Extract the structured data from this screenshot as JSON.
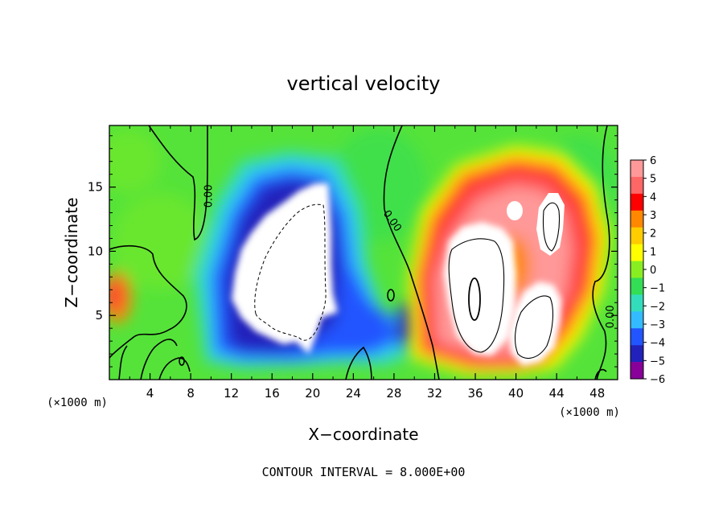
{
  "chart_data": {
    "type": "heatmap",
    "title": "vertical velocity",
    "xlabel": "X−coordinate",
    "ylabel": "Z−coordinate",
    "x_unit_label": "(×1000 m)",
    "y_unit_label": "(×1000 m)",
    "footer": "CONTOUR INTERVAL = 8.000E+00",
    "xlim": [
      0,
      50
    ],
    "ylim": [
      0,
      19.8
    ],
    "x_ticks": [
      4,
      8,
      12,
      16,
      20,
      24,
      28,
      32,
      36,
      40,
      44,
      48
    ],
    "x_tick_labels": [
      "4",
      "8",
      "12",
      "16",
      "20",
      "24",
      "28",
      "32",
      "36",
      "40",
      "44",
      "48"
    ],
    "y_ticks": [
      5,
      10,
      15
    ],
    "y_tick_labels": [
      "5",
      "10",
      "15"
    ],
    "colorbar": {
      "values": [
        6,
        5,
        4,
        3,
        2,
        1,
        0,
        -1,
        -2,
        -3,
        -4,
        -5,
        -6
      ],
      "labels": [
        "6",
        "5",
        "4",
        "3",
        "2",
        "1",
        "0",
        "−1",
        "−2",
        "−3",
        "−4",
        "−5",
        "−6"
      ],
      "colors": [
        "#ff9999",
        "#ff6666",
        "#ff0000",
        "#ff8800",
        "#ffcc00",
        "#ffff00",
        "#88ee22",
        "#33dd55",
        "#33ddbb",
        "#33bbff",
        "#2255ff",
        "#2222bb",
        "#880099"
      ]
    },
    "contour_labels": [
      {
        "text": "0.00",
        "x": 9.7,
        "z": 14.3,
        "rotate": -90
      },
      {
        "text": "0.00",
        "x": 27.9,
        "z": 12.4,
        "rotate": 55
      },
      {
        "text": "0.00",
        "x": 49.2,
        "z": 4.9,
        "rotate": -90
      }
    ],
    "features": [
      {
        "name": "downdraft-core",
        "sign": "negative",
        "x_range": [
          12,
          22
        ],
        "z_range": [
          1.5,
          16
        ]
      },
      {
        "name": "updraft-core",
        "sign": "positive",
        "x_range": [
          31,
          46
        ],
        "z_range": [
          0.5,
          17.5
        ]
      }
    ]
  }
}
